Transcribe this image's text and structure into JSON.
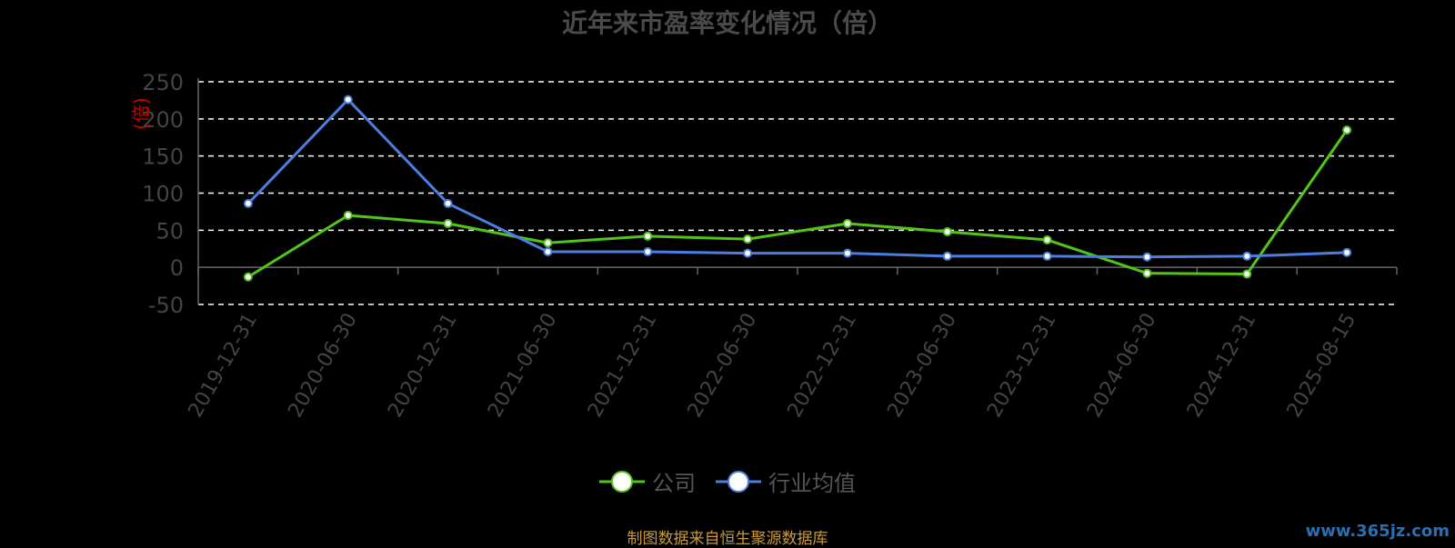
{
  "title": "近年来市盈率变化情况（倍）",
  "source_note": "制图数据来自恒生聚源数据库",
  "watermark": "www.365jz.com",
  "colors": {
    "company": "#52c41a",
    "industry": "#4a7fe0",
    "grid": "#ffffff",
    "axis": "#666666",
    "unit": "#cc0000",
    "tick": "#444444"
  },
  "chart_data": {
    "type": "line",
    "title": "近年来市盈率变化情况（倍）",
    "ylabel": "(倍)",
    "ylim": [
      -50,
      250
    ],
    "yticks": [
      -50,
      0,
      50,
      100,
      150,
      200,
      250
    ],
    "grid": true,
    "legend_position": "bottom",
    "categories": [
      "2019-12-31",
      "2020-06-30",
      "2020-12-31",
      "2021-06-30",
      "2021-12-31",
      "2022-06-30",
      "2022-12-31",
      "2023-06-30",
      "2023-12-31",
      "2024-06-30",
      "2024-12-31",
      "2025-08-15"
    ],
    "series": [
      {
        "name": "公司",
        "values": [
          -13,
          70,
          59,
          33,
          42,
          38,
          59,
          48,
          37,
          -8,
          -9,
          185
        ]
      },
      {
        "name": "行业均值",
        "values": [
          86,
          226,
          86,
          21,
          21,
          19,
          19,
          15,
          15,
          14,
          15,
          20
        ]
      }
    ]
  }
}
